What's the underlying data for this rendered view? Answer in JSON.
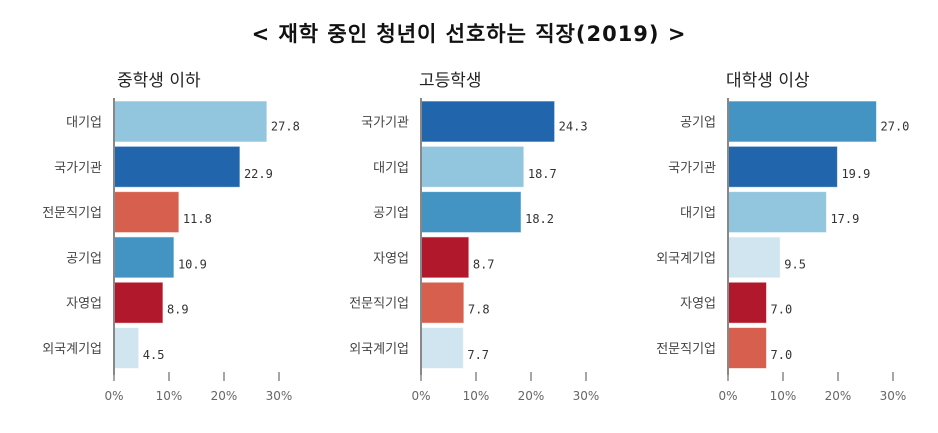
{
  "title": "< 재학 중인 청년이 선호하는 직장(2019) >",
  "colors": {
    "대기업": "#92c5de",
    "국가기관": "#2166ac",
    "전문직기업": "#d6604d",
    "공기업": "#4393c3",
    "자영업": "#b2182b",
    "외국계기업": "#d1e5f0"
  },
  "chart_data": [
    {
      "type": "bar",
      "orientation": "horizontal",
      "title": "중학생 이하",
      "categories": [
        "대기업",
        "국가기관",
        "전문직기업",
        "공기업",
        "자영업",
        "외국계기업"
      ],
      "values": [
        27.8,
        22.9,
        11.8,
        10.9,
        8.9,
        4.5
      ],
      "value_labels": [
        "27.8",
        "22.9",
        "11.8",
        "10.9",
        "8.9",
        "4.5"
      ],
      "xlim": [
        0,
        30
      ],
      "xticks": [
        "0%",
        "10%",
        "20%",
        "30%"
      ],
      "grid": false
    },
    {
      "type": "bar",
      "orientation": "horizontal",
      "title": "고등학생",
      "categories": [
        "국가기관",
        "대기업",
        "공기업",
        "자영업",
        "전문직기업",
        "외국계기업"
      ],
      "values": [
        24.3,
        18.7,
        18.2,
        8.7,
        7.8,
        7.7
      ],
      "value_labels": [
        "24.3",
        "18.7",
        "18.2",
        "8.7",
        "7.8",
        "7.7"
      ],
      "xlim": [
        0,
        30
      ],
      "xticks": [
        "0%",
        "10%",
        "20%",
        "30%"
      ],
      "grid": false
    },
    {
      "type": "bar",
      "orientation": "horizontal",
      "title": "대학생 이상",
      "categories": [
        "공기업",
        "국가기관",
        "대기업",
        "외국계기업",
        "자영업",
        "전문직기업"
      ],
      "values": [
        27.0,
        19.9,
        17.9,
        9.5,
        7.0,
        7.0
      ],
      "value_labels": [
        "27.0",
        "19.9",
        "17.9",
        "9.5",
        "7.0",
        "7.0"
      ],
      "xlim": [
        0,
        30
      ],
      "xticks": [
        "0%",
        "10%",
        "20%",
        "30%"
      ],
      "grid": false
    }
  ]
}
